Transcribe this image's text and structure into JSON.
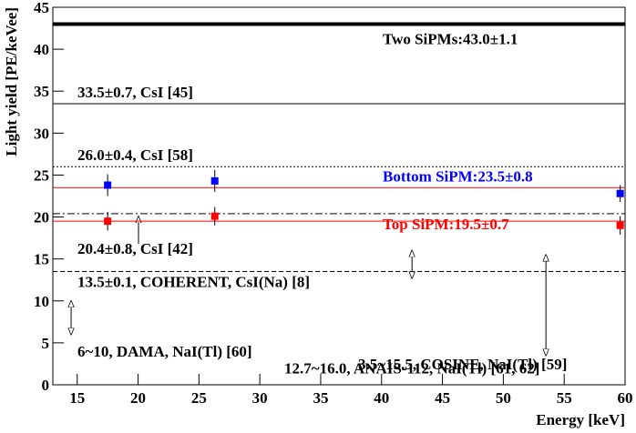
{
  "chart_data": {
    "type": "scatter",
    "x_label": "Energy [keV]",
    "y_label": "Light yield [PE/keVee]",
    "xlim": [
      13,
      60
    ],
    "ylim": [
      0,
      45
    ],
    "xticks": [
      15,
      20,
      25,
      30,
      35,
      40,
      45,
      50,
      55,
      60
    ],
    "yticks": [
      0,
      5,
      10,
      15,
      20,
      25,
      30,
      35,
      40,
      45
    ],
    "series": [
      {
        "color": "#0000ff",
        "x": [
          17.5,
          26.3,
          59.6
        ],
        "values": [
          23.8,
          24.3,
          22.8
        ],
        "errors": [
          1.3,
          1.3,
          1.0
        ]
      },
      {
        "color": "#ff0000",
        "x": [
          17.5,
          26.3,
          59.6
        ],
        "values": [
          19.5,
          20.1,
          19.0
        ],
        "errors": [
          1.1,
          1.1,
          1.1
        ]
      }
    ],
    "reference_lines": [
      {
        "value": 43.0,
        "label": "Two SiPMs:43.0±1.1",
        "color": "#000000",
        "label_color": "#000000",
        "style": "thick"
      },
      {
        "value": 33.5,
        "label": "33.5±0.7, CsI [45]",
        "color": "#000000",
        "label_color": "#000000",
        "style": "solid"
      },
      {
        "value": 26.0,
        "label": "26.0±0.4, CsI [58]",
        "color": "#000000",
        "label_color": "#000000",
        "style": "dotted"
      },
      {
        "value": 23.5,
        "label": "Bottom SiPM:23.5±0.8",
        "color": "#ff0000",
        "label_color": "#0000ff",
        "style": "solid"
      },
      {
        "value": 20.4,
        "label": "20.4±0.8, CsI [42]",
        "color": "#000000",
        "label_color": "#000000",
        "style": "dashdot"
      },
      {
        "value": 19.5,
        "label": "Top SiPM:19.5±0.7",
        "color": "#ff0000",
        "label_color": "#ff0000",
        "style": "solid"
      },
      {
        "value": 13.5,
        "label": "13.5±0.1, COHERENT, CsI(Na) [8]",
        "color": "#000000",
        "label_color": "#000000",
        "style": "dashed"
      }
    ],
    "ranges": [
      {
        "x": 14.5,
        "low": 6,
        "high": 10,
        "label": "6~10, DAMA, NaI(Tl) [60]"
      },
      {
        "x": 42.5,
        "low": 12.7,
        "high": 16.0,
        "label": "12.7~16.0, ANAIS-112, NaI(Tl) [61, 62]"
      },
      {
        "x": 53.5,
        "low": 3.5,
        "high": 15.5,
        "label": "3.5~15.5, COSINE, NaI(Tl) [59]"
      }
    ]
  }
}
